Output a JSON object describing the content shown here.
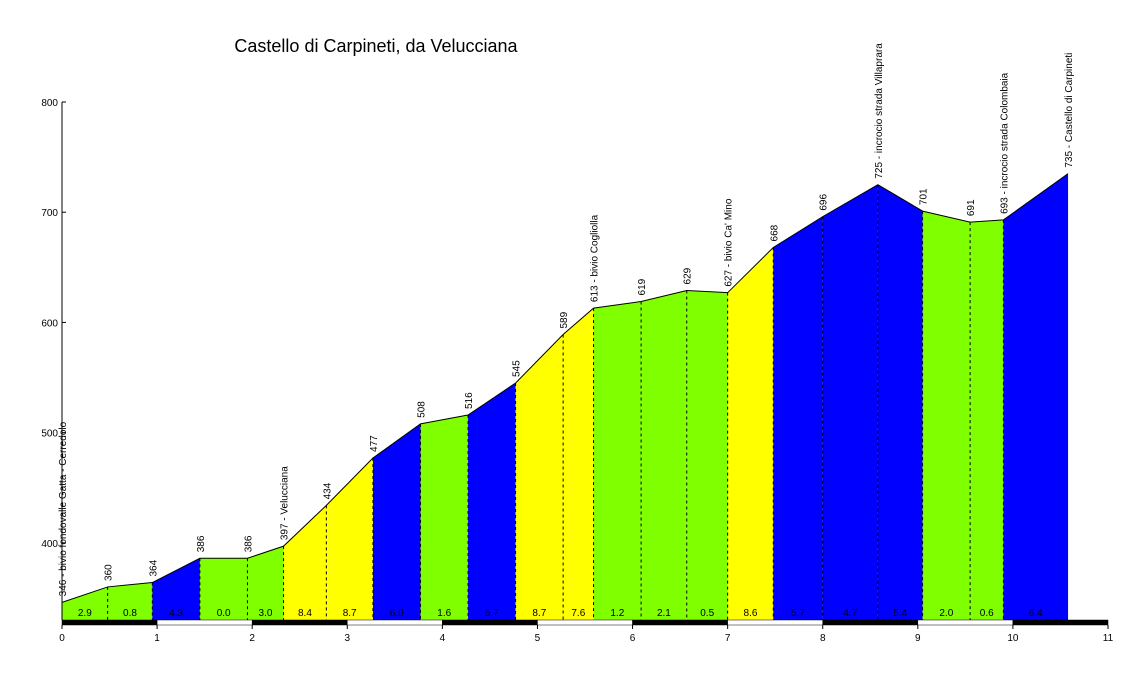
{
  "chart_data": {
    "type": "area",
    "title": "Castello di Carpineti, da Velucciana",
    "xlabel": "",
    "ylabel": "",
    "xlim": [
      0,
      11
    ],
    "ylim": [
      330,
      800
    ],
    "x_ticks": [
      "0",
      "1",
      "2",
      "3",
      "4",
      "5",
      "6",
      "7",
      "8",
      "9",
      "10",
      "11"
    ],
    "y_ticks": [
      "400",
      "500",
      "600",
      "700",
      "800"
    ],
    "colors": {
      "green": "#80ff00",
      "blue": "#0000ff",
      "yellow": "#ffff00"
    },
    "profile": [
      {
        "km": 0.0,
        "elev": 346,
        "label": "346 - bivio fondovalle Gatta - Cerredolo"
      },
      {
        "km": 0.48,
        "elev": 360,
        "label": "360"
      },
      {
        "km": 0.95,
        "elev": 364,
        "label": "364"
      },
      {
        "km": 1.45,
        "elev": 386,
        "label": "386"
      },
      {
        "km": 1.95,
        "elev": 386,
        "label": "386"
      },
      {
        "km": 2.33,
        "elev": 397,
        "label": "397 - Velucciana"
      },
      {
        "km": 2.78,
        "elev": 434,
        "label": "434"
      },
      {
        "km": 3.27,
        "elev": 477,
        "label": "477"
      },
      {
        "km": 3.77,
        "elev": 508,
        "label": "508"
      },
      {
        "km": 4.27,
        "elev": 516,
        "label": "516"
      },
      {
        "km": 4.77,
        "elev": 545,
        "label": "545"
      },
      {
        "km": 5.27,
        "elev": 589,
        "label": "589"
      },
      {
        "km": 5.59,
        "elev": 613,
        "label": "613 - bivio Cogliolla"
      },
      {
        "km": 6.09,
        "elev": 619,
        "label": "619"
      },
      {
        "km": 6.57,
        "elev": 629,
        "label": "629"
      },
      {
        "km": 7.0,
        "elev": 627,
        "label": "627 - bivio Ca' Mino"
      },
      {
        "km": 7.48,
        "elev": 668,
        "label": "668"
      },
      {
        "km": 8.0,
        "elev": 696,
        "label": "696"
      },
      {
        "km": 8.58,
        "elev": 725,
        "label": "725 - incrocio strada Villaprara"
      },
      {
        "km": 9.05,
        "elev": 701,
        "label": "701"
      },
      {
        "km": 9.55,
        "elev": 691,
        "label": "691"
      },
      {
        "km": 9.9,
        "elev": 693,
        "label": "693 - incrocio strada Colombaia"
      },
      {
        "km": 10.58,
        "elev": 735,
        "label": "735 - Castello di Carpineti"
      }
    ],
    "segments": [
      {
        "grade": "2.9",
        "color": "green"
      },
      {
        "grade": "0.8",
        "color": "green"
      },
      {
        "grade": "4.3",
        "color": "blue"
      },
      {
        "grade": "0.0",
        "color": "green"
      },
      {
        "grade": "3.0",
        "color": "green"
      },
      {
        "grade": "8.4",
        "color": "yellow"
      },
      {
        "grade": "8.7",
        "color": "yellow"
      },
      {
        "grade": "6.0",
        "color": "blue"
      },
      {
        "grade": "1.6",
        "color": "green"
      },
      {
        "grade": "5.7",
        "color": "blue"
      },
      {
        "grade": "8.7",
        "color": "yellow"
      },
      {
        "grade": "7.6",
        "color": "yellow"
      },
      {
        "grade": "1.2",
        "color": "green"
      },
      {
        "grade": "2.1",
        "color": "green"
      },
      {
        "grade": "0.5",
        "color": "green"
      },
      {
        "grade": "8.6",
        "color": "yellow"
      },
      {
        "grade": "5.7",
        "color": "blue"
      },
      {
        "grade": "4.7",
        "color": "blue"
      },
      {
        "grade": "5.4",
        "color": "blue"
      },
      {
        "grade": "2.0",
        "color": "green"
      },
      {
        "grade": "0.6",
        "color": "green"
      },
      {
        "grade": "6.4",
        "color": "blue"
      }
    ],
    "grid": false,
    "legend": "none"
  }
}
